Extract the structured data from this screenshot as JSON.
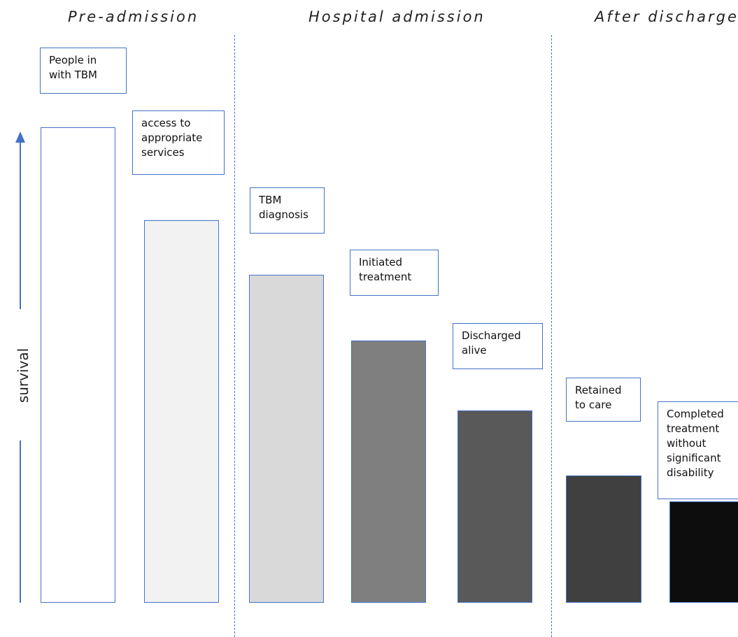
{
  "phases": {
    "pre_admission": "Pre-admission",
    "hospital_admission": "Hospital admission",
    "after_discharge": "After discharge"
  },
  "y_axis": {
    "label": "survival"
  },
  "colors": {
    "accent": "#4472c4",
    "stages": [
      "#ffffff",
      "#f2f2f2",
      "#d9d9d9",
      "#7f7f7f",
      "#595959",
      "#404040",
      "#0d0d0d"
    ]
  },
  "stages": [
    {
      "label": "People in\nwith TBM",
      "survival": 1.0
    },
    {
      "label": "access to\nappropriate\nservices",
      "survival": 0.805
    },
    {
      "label": "TBM\ndiagnosis",
      "survival": 0.689
    },
    {
      "label": "Initiated\ntreatment",
      "survival": 0.551
    },
    {
      "label": "Discharged\nalive",
      "survival": 0.405
    },
    {
      "label": "Retained\nto care",
      "survival": 0.267
    },
    {
      "label": "Completed\ntreatment\nwithout\nsignificant\ndisability",
      "survival": 0.213
    }
  ]
}
